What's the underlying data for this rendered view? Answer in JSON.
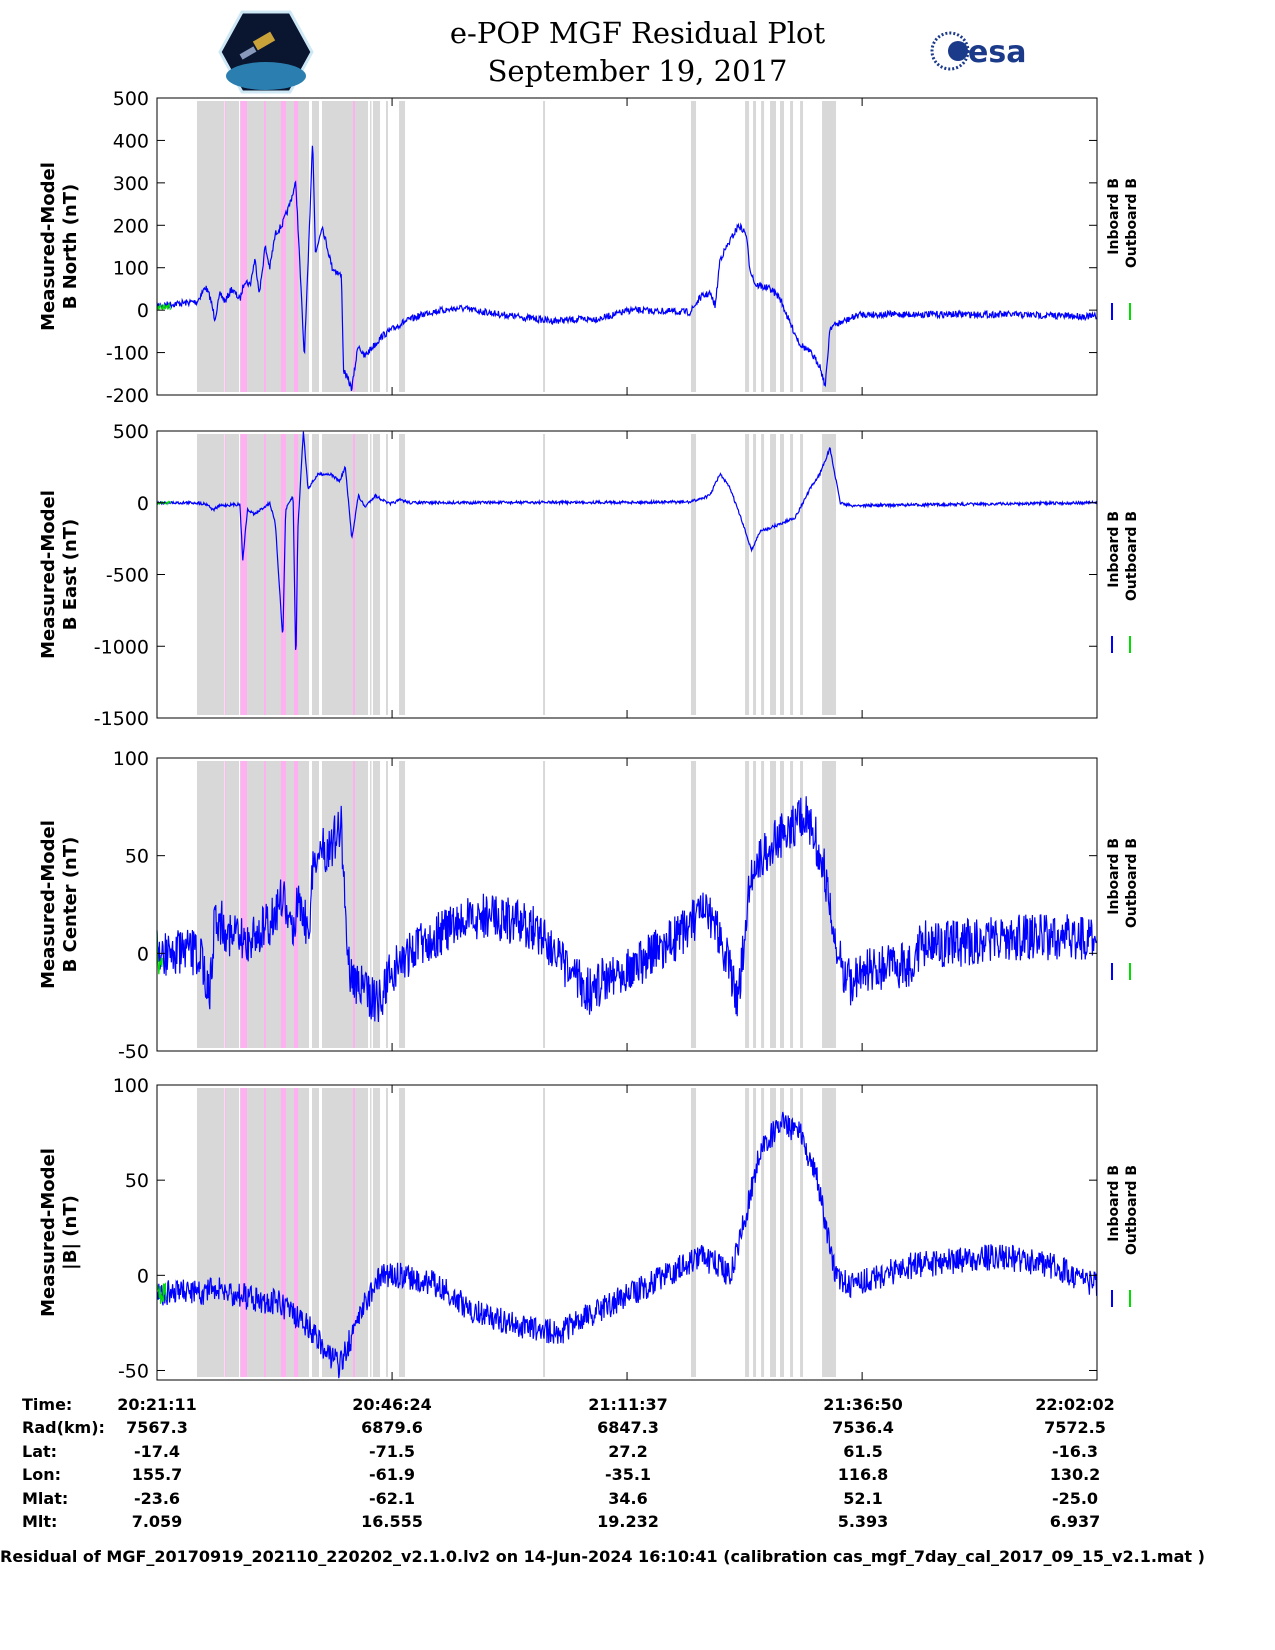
{
  "header": {
    "title": "e-POP MGF Residual Plot",
    "date": "September 19, 2017",
    "left_logo": "CASSIOPE",
    "right_logo": "esa"
  },
  "colors": {
    "inboard": "#0000ff",
    "outboard": "#00dd00",
    "shade_gray": "#d8d8d8",
    "shade_pink": "#ffb0f0"
  },
  "chart_data": [
    {
      "type": "line",
      "id": "north",
      "ylabel": [
        "Measured-Model",
        "B North (nT)"
      ],
      "ylim": [
        -200,
        500
      ],
      "yticks": [
        500,
        400,
        300,
        200,
        100,
        0,
        -100,
        -200
      ],
      "noise": 8,
      "legend": [
        "Inboard B",
        "Outboard B"
      ],
      "inboard": [
        [
          0,
          10
        ],
        [
          1.9,
          15
        ],
        [
          4.3,
          20
        ],
        [
          5.2,
          55
        ],
        [
          5.7,
          30
        ],
        [
          6.2,
          -20
        ],
        [
          6.8,
          40
        ],
        [
          7.3,
          20
        ],
        [
          8.0,
          50
        ],
        [
          8.9,
          25
        ],
        [
          9.4,
          70
        ],
        [
          10.0,
          60
        ],
        [
          10.5,
          120
        ],
        [
          11.0,
          40
        ],
        [
          11.6,
          150
        ],
        [
          12.1,
          100
        ],
        [
          12.7,
          180
        ],
        [
          13.4,
          200
        ],
        [
          14.1,
          240
        ],
        [
          14.9,
          300
        ],
        [
          15.8,
          -110
        ],
        [
          16.2,
          100
        ],
        [
          16.7,
          410
        ],
        [
          17.0,
          130
        ],
        [
          17.7,
          200
        ],
        [
          18.8,
          100
        ],
        [
          19.8,
          80
        ],
        [
          20.0,
          -140
        ],
        [
          20.9,
          -185
        ],
        [
          21.6,
          -80
        ],
        [
          22.2,
          -110
        ],
        [
          24.2,
          -60
        ],
        [
          26.3,
          -30
        ],
        [
          29.1,
          -5
        ],
        [
          32.5,
          5
        ],
        [
          36.8,
          -10
        ],
        [
          42.2,
          -25
        ],
        [
          47.5,
          -20
        ],
        [
          50.8,
          0
        ],
        [
          57.2,
          -5
        ],
        [
          58.3,
          30
        ],
        [
          59.3,
          40
        ],
        [
          59.9,
          10
        ],
        [
          60.4,
          120
        ],
        [
          62.4,
          200
        ],
        [
          63.2,
          180
        ],
        [
          63.6,
          100
        ],
        [
          64.2,
          60
        ],
        [
          65.8,
          50
        ],
        [
          66.8,
          30
        ],
        [
          67.9,
          -30
        ],
        [
          69.0,
          -80
        ],
        [
          70.1,
          -100
        ],
        [
          71.1,
          -130
        ],
        [
          71.7,
          -180
        ],
        [
          72.2,
          -40
        ],
        [
          73.3,
          -30
        ],
        [
          75.4,
          -10
        ],
        [
          90.5,
          -10
        ],
        [
          100.85,
          -15
        ]
      ],
      "outboard": [
        [
          0,
          5
        ],
        [
          1.5,
          10
        ]
      ]
    },
    {
      "type": "line",
      "id": "east",
      "ylabel": [
        "Measured-Model",
        "B East (nT)"
      ],
      "ylim": [
        -1500,
        500
      ],
      "yticks": [
        500,
        0,
        -500,
        -1000,
        -1500
      ],
      "noise": 10,
      "legend": [
        "Inboard B",
        "Outboard B"
      ],
      "inboard": [
        [
          0,
          0
        ],
        [
          4.3,
          0
        ],
        [
          5.4,
          -10
        ],
        [
          6.0,
          -50
        ],
        [
          6.8,
          -20
        ],
        [
          8.9,
          -10
        ],
        [
          9.2,
          -400
        ],
        [
          9.7,
          -50
        ],
        [
          10.5,
          -80
        ],
        [
          12.1,
          0
        ],
        [
          12.7,
          -150
        ],
        [
          13.5,
          -950
        ],
        [
          13.8,
          -50
        ],
        [
          14.6,
          50
        ],
        [
          14.9,
          -1150
        ],
        [
          15.1,
          -200
        ],
        [
          15.7,
          500
        ],
        [
          16.2,
          100
        ],
        [
          17.3,
          200
        ],
        [
          18.6,
          200
        ],
        [
          19.6,
          150
        ],
        [
          20.2,
          250
        ],
        [
          20.9,
          -250
        ],
        [
          21.6,
          50
        ],
        [
          22.3,
          -30
        ],
        [
          23.4,
          50
        ],
        [
          25.0,
          -10
        ],
        [
          26.1,
          20
        ],
        [
          27.2,
          0
        ],
        [
          57.2,
          5
        ],
        [
          59.3,
          50
        ],
        [
          60.4,
          200
        ],
        [
          61.5,
          100
        ],
        [
          62.6,
          -100
        ],
        [
          63.8,
          -330
        ],
        [
          64.7,
          -200
        ],
        [
          66.8,
          -150
        ],
        [
          68.5,
          -100
        ],
        [
          70.1,
          100
        ],
        [
          71.1,
          200
        ],
        [
          72.2,
          380
        ],
        [
          73.3,
          0
        ],
        [
          74.4,
          -20
        ],
        [
          100.85,
          0
        ]
      ],
      "outboard": [
        [
          0,
          0
        ],
        [
          1.5,
          0
        ]
      ]
    },
    {
      "type": "line",
      "id": "center",
      "ylabel": [
        "Measured-Model",
        "B Center (nT)"
      ],
      "ylim": [
        -50,
        100
      ],
      "yticks": [
        100,
        50,
        0,
        -50
      ],
      "noise": 12,
      "legend": [
        "Inboard B",
        "Outboard B"
      ],
      "inboard": [
        [
          0,
          0
        ],
        [
          4.6,
          0
        ],
        [
          5.7,
          -20
        ],
        [
          6.2,
          20
        ],
        [
          7.8,
          10
        ],
        [
          9.4,
          5
        ],
        [
          12.1,
          15
        ],
        [
          13.5,
          30
        ],
        [
          14.3,
          10
        ],
        [
          15.3,
          30
        ],
        [
          16.2,
          10
        ],
        [
          16.9,
          50
        ],
        [
          18.6,
          55
        ],
        [
          19.8,
          65
        ],
        [
          20.2,
          20
        ],
        [
          20.7,
          -10
        ],
        [
          22.3,
          -20
        ],
        [
          23.9,
          -25
        ],
        [
          25.0,
          -10
        ],
        [
          28.2,
          5
        ],
        [
          30.3,
          10
        ],
        [
          32.5,
          15
        ],
        [
          35.7,
          20
        ],
        [
          38.9,
          15
        ],
        [
          41.6,
          10
        ],
        [
          43.2,
          -5
        ],
        [
          46.4,
          -20
        ],
        [
          48.6,
          -10
        ],
        [
          51.8,
          -5
        ],
        [
          55.0,
          5
        ],
        [
          57.2,
          15
        ],
        [
          58.8,
          20
        ],
        [
          60.4,
          10
        ],
        [
          62.4,
          -25
        ],
        [
          63.6,
          40
        ],
        [
          65.8,
          55
        ],
        [
          67.9,
          65
        ],
        [
          69.5,
          70
        ],
        [
          70.6,
          60
        ],
        [
          71.7,
          40
        ],
        [
          72.8,
          0
        ],
        [
          74.4,
          -15
        ],
        [
          76.6,
          -8
        ],
        [
          80.9,
          -5
        ],
        [
          82.0,
          5
        ],
        [
          86.3,
          5
        ],
        [
          90.5,
          8
        ],
        [
          95.9,
          8
        ],
        [
          100.85,
          8
        ]
      ],
      "outboard": [
        [
          0,
          0
        ],
        [
          0.6,
          0
        ]
      ]
    },
    {
      "type": "line",
      "id": "total",
      "ylabel": [
        "Measured-Model",
        "|B| (nT)"
      ],
      "ylim": [
        -55,
        100
      ],
      "yticks": [
        100,
        50,
        0,
        -50
      ],
      "noise": 7,
      "legend": [
        "Inboard B",
        "Outboard B"
      ],
      "inboard": [
        [
          0,
          -10
        ],
        [
          6.8,
          -8
        ],
        [
          13.2,
          -15
        ],
        [
          16.4,
          -28
        ],
        [
          19.6,
          -48
        ],
        [
          21.8,
          -20
        ],
        [
          23.9,
          0
        ],
        [
          26.1,
          0
        ],
        [
          30.3,
          -5
        ],
        [
          33.6,
          -18
        ],
        [
          37.9,
          -25
        ],
        [
          43.2,
          -30
        ],
        [
          47.5,
          -18
        ],
        [
          52.9,
          -5
        ],
        [
          58.3,
          10
        ],
        [
          60.4,
          5
        ],
        [
          61.5,
          0
        ],
        [
          63.1,
          30
        ],
        [
          64.7,
          65
        ],
        [
          66.8,
          80
        ],
        [
          69.0,
          75
        ],
        [
          70.6,
          55
        ],
        [
          72.8,
          0
        ],
        [
          74.4,
          -5
        ],
        [
          80.9,
          5
        ],
        [
          86.3,
          8
        ],
        [
          90.5,
          10
        ],
        [
          95.9,
          5
        ],
        [
          100.85,
          -5
        ]
      ],
      "outboard": [
        [
          0,
          -10
        ],
        [
          1.0,
          -10
        ]
      ]
    }
  ],
  "x_axis": {
    "unit": "minutes since 20:21:11",
    "range": [
      0,
      100.85
    ],
    "ticks": [
      0,
      25.22,
      50.43,
      75.65,
      100.85
    ]
  },
  "shading": {
    "gray": [
      [
        4.29,
        7.19
      ],
      [
        7.3,
        8.8
      ],
      [
        8.91,
        16.31
      ],
      [
        16.63,
        17.38
      ],
      [
        17.7,
        22.64
      ],
      [
        22.85,
        23.01
      ],
      [
        23.17,
        23.93
      ],
      [
        24.57,
        24.78
      ],
      [
        25.97,
        26.61
      ],
      [
        41.42,
        41.63
      ],
      [
        57.29,
        57.83
      ],
      [
        63.09,
        63.52
      ],
      [
        63.95,
        64.27
      ],
      [
        64.81,
        65.13
      ],
      [
        65.77,
        66.41
      ],
      [
        66.84,
        67.27
      ],
      [
        67.92,
        68.24
      ],
      [
        68.99,
        69.31
      ],
      [
        71.35,
        72.85
      ]
    ],
    "pink": [
      [
        7.24,
        7.35
      ],
      [
        8.96,
        9.66
      ],
      [
        11.48,
        11.69
      ],
      [
        13.3,
        13.84
      ],
      [
        14.7,
        15.13
      ],
      [
        21.03,
        21.24
      ]
    ]
  },
  "table": {
    "labels": [
      "Time:",
      "Rad(km):",
      "Lat:",
      "Lon:",
      "Mlat:",
      "Mlt:"
    ],
    "columns": [
      [
        "20:21:11",
        "7567.3",
        "-17.4",
        "155.7",
        "-23.6",
        "7.059"
      ],
      [
        "20:46:24",
        "6879.6",
        "-71.5",
        "-61.9",
        "-62.1",
        "16.555"
      ],
      [
        "21:11:37",
        "6847.3",
        "27.2",
        "-35.1",
        "34.6",
        "19.232"
      ],
      [
        "21:36:50",
        "7536.4",
        "61.5",
        "116.8",
        "52.1",
        "5.393"
      ],
      [
        "22:02:02",
        "7572.5",
        "-16.3",
        "130.2",
        "-25.0",
        "6.937"
      ]
    ]
  },
  "footer": "Residual of MGF_20170919_202110_220202_v2.1.0.lv2 on 14-Jun-2024 16:10:41 (calibration cas_mgf_7day_cal_2017_09_15_v2.1.mat )"
}
